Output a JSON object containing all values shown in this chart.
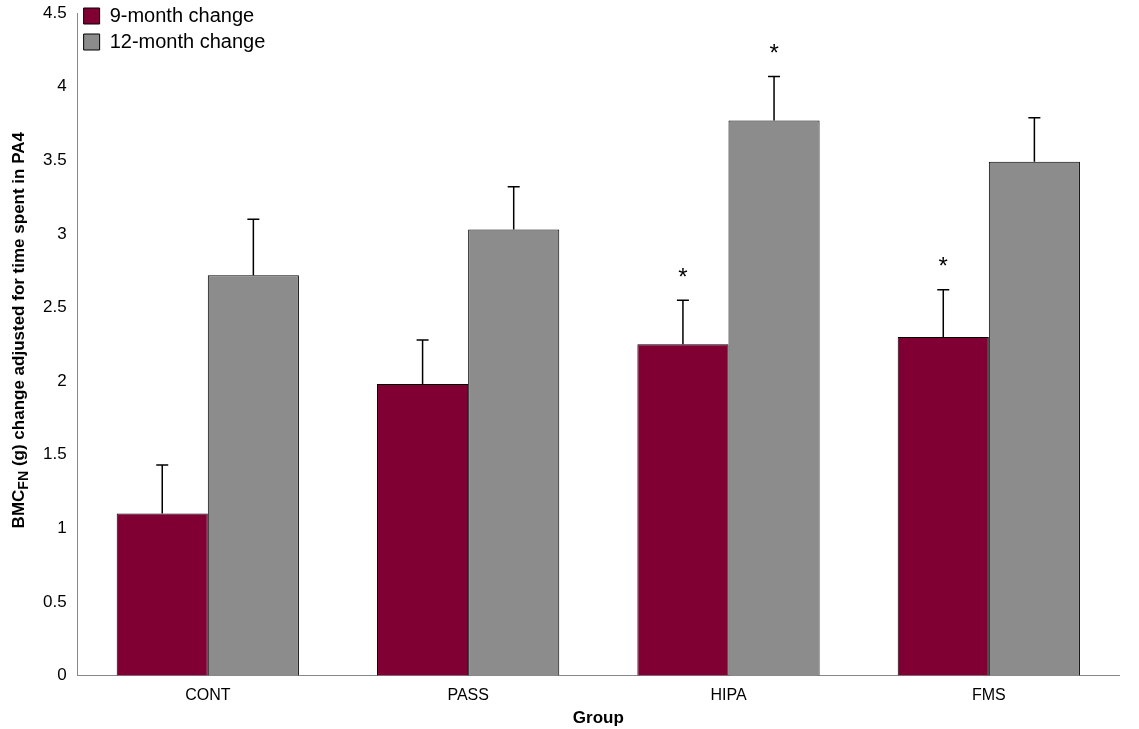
{
  "chart_data": {
    "type": "bar",
    "xlabel": "Group",
    "ylabel": "BMC$_{FN}$ (g) change adjusted for time spent in PA4",
    "categories": [
      "CONT",
      "PASS",
      "HIPA",
      "FMS"
    ],
    "series": [
      {
        "name": "9-month change",
        "color": "#800033",
        "values": [
          1.1,
          1.98,
          2.25,
          2.3
        ],
        "errors": [
          [
            1.1,
            1.43
          ],
          [
            1.98,
            2.28
          ],
          [
            2.25,
            2.55
          ],
          [
            2.3,
            2.62
          ]
        ]
      },
      {
        "name": "12-month change",
        "color": "#8c8c8c",
        "values": [
          2.72,
          3.03,
          3.77,
          3.49
        ],
        "errors": [
          [
            2.72,
            3.1
          ],
          [
            3.03,
            3.32
          ],
          [
            3.77,
            4.07
          ],
          [
            3.49,
            3.79
          ]
        ]
      }
    ],
    "ylim": [
      0,
      4.5
    ],
    "yticks": [
      0,
      0.5,
      1,
      1.5,
      2,
      2.5,
      3,
      3.5,
      4,
      4.5
    ],
    "grid": false,
    "legend": "top left",
    "annotations": [
      {
        "text": "*",
        "x": "HIPA",
        "y": 2.25
      },
      {
        "text": "*",
        "x": "HIPA",
        "y": 3.77
      },
      {
        "text": "*",
        "x": "FMS",
        "y": 2.3
      }
    ]
  }
}
